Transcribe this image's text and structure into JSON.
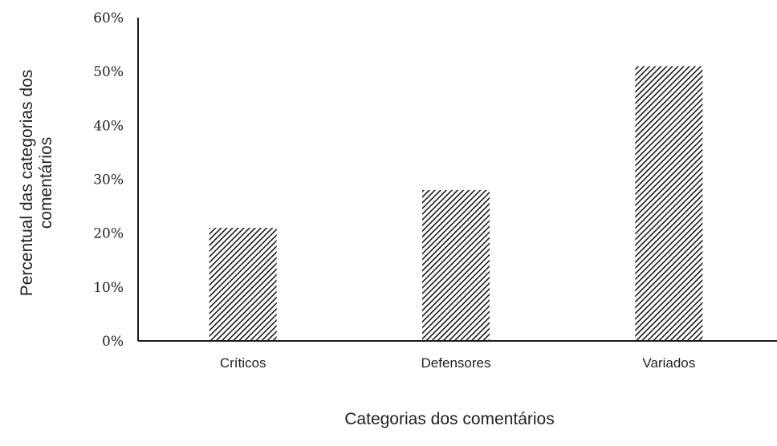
{
  "chart_data": {
    "type": "bar",
    "categories": [
      "Críticos",
      "Defensores",
      "Variados"
    ],
    "values": [
      21,
      28,
      51
    ],
    "unit": "%",
    "xlabel": "Categorias dos comentários",
    "ylabel_lines": [
      "Percentual das categorias dos",
      "comentários"
    ],
    "yticks": [
      "0%",
      "10%",
      "20%",
      "30%",
      "40%",
      "50%",
      "60%"
    ],
    "ylim": [
      0,
      60
    ],
    "grid": false,
    "legend": "none",
    "bar_fill": "diagonal-hatch",
    "colors": {
      "bar": "#1a1a1a",
      "axis": "#1a1a1a",
      "background": "#ffffff"
    }
  }
}
